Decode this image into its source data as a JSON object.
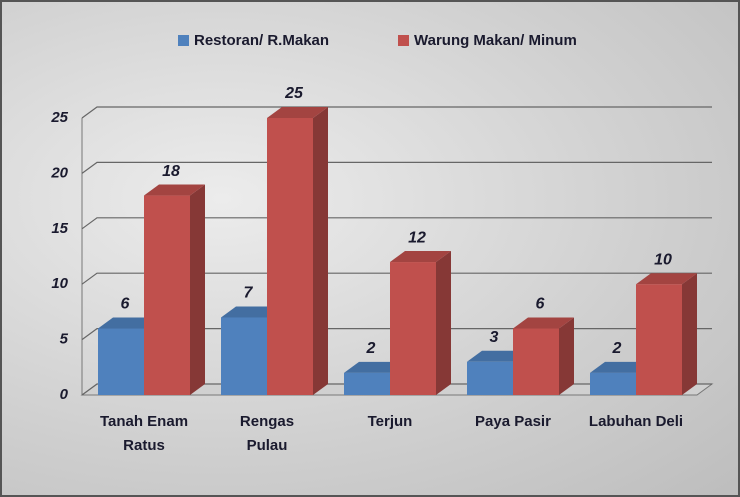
{
  "chart_data": {
    "type": "bar3d",
    "categories": [
      "Tanah Enam\nRatus",
      "Rengas\nPulau",
      "Terjun",
      "Paya Pasir",
      "Labuhan Deli"
    ],
    "series": [
      {
        "name": "Restoran/ R.Makan",
        "color": "#4f81bd",
        "values": [
          6,
          7,
          2,
          3,
          2
        ]
      },
      {
        "name": "Warung Makan/ Minum",
        "color": "#c0504d",
        "values": [
          18,
          25,
          12,
          6,
          10
        ]
      }
    ],
    "ylim": [
      0,
      25
    ],
    "yticks": [
      0,
      5,
      10,
      15,
      20,
      25
    ],
    "grid": true,
    "legend": "top"
  }
}
